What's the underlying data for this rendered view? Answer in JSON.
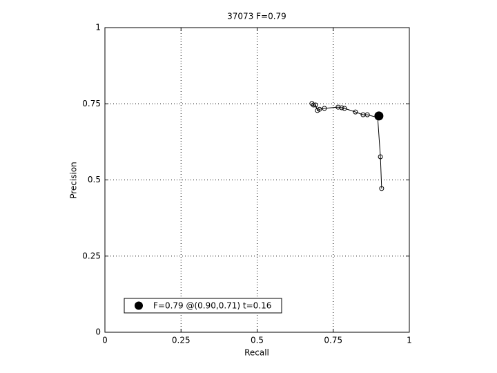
{
  "chart_data": {
    "type": "line",
    "title": "37073 F=0.79",
    "xlabel": "Recall",
    "ylabel": "Precision",
    "x": [
      0.68,
      0.685,
      0.692,
      0.698,
      0.705,
      0.721,
      0.766,
      0.778,
      0.787,
      0.823,
      0.848,
      0.862,
      0.896,
      0.905,
      0.909
    ],
    "series": [
      {
        "color": "#000000",
        "values": [
          0.751,
          0.746,
          0.746,
          0.728,
          0.732,
          0.735,
          0.739,
          0.737,
          0.735,
          0.723,
          0.714,
          0.714,
          0.705,
          0.576,
          0.472
        ]
      }
    ],
    "best": {
      "x": 0.9,
      "y": 0.71,
      "label": "F=0.79 @(0.90,0.71) t=0.16",
      "color": "#000000"
    },
    "xlim": [
      0,
      1
    ],
    "ylim": [
      0,
      1
    ],
    "xticks": [
      0,
      0.25,
      0.5,
      0.75,
      1
    ],
    "yticks": [
      0,
      0.25,
      0.5,
      0.75,
      1
    ],
    "grid": true,
    "legend_position": "lower left"
  }
}
